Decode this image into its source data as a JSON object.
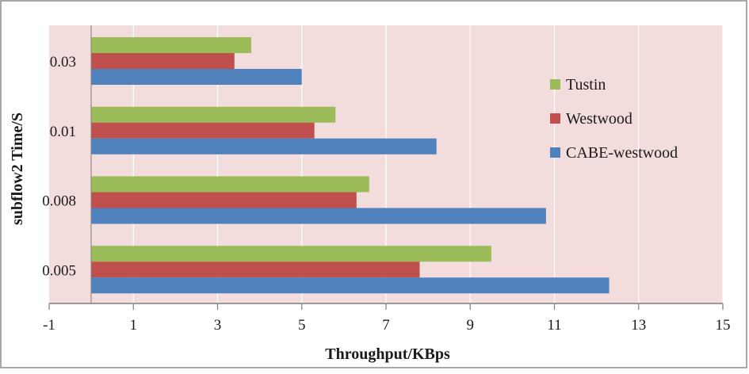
{
  "colors": {
    "plot_background": "#f3dcdc",
    "gridline": "#ffffff",
    "axis": "#7f7f7f",
    "frame": "#8c8c8c"
  },
  "chart_data": {
    "type": "bar",
    "orientation": "horizontal",
    "title": "",
    "xlabel": "Throughput/KBps",
    "ylabel": "subflow2 Time/S",
    "categories": [
      "0.03",
      "0.01",
      "0.008",
      "0.005"
    ],
    "series": [
      {
        "name": "Tustin",
        "color": "#9bbb59",
        "values": [
          3.8,
          5.8,
          6.6,
          9.5
        ]
      },
      {
        "name": "Westwood",
        "color": "#c0504d",
        "values": [
          3.4,
          5.3,
          6.3,
          7.8
        ]
      },
      {
        "name": "CABE-westwood",
        "color": "#4f81bd",
        "values": [
          5.0,
          8.2,
          10.8,
          12.3
        ]
      }
    ],
    "xlim": [
      -1,
      15
    ],
    "xticks": [
      "-1",
      "1",
      "3",
      "5",
      "7",
      "9",
      "11",
      "13",
      "15"
    ],
    "grid": true,
    "legend_position": "right"
  }
}
